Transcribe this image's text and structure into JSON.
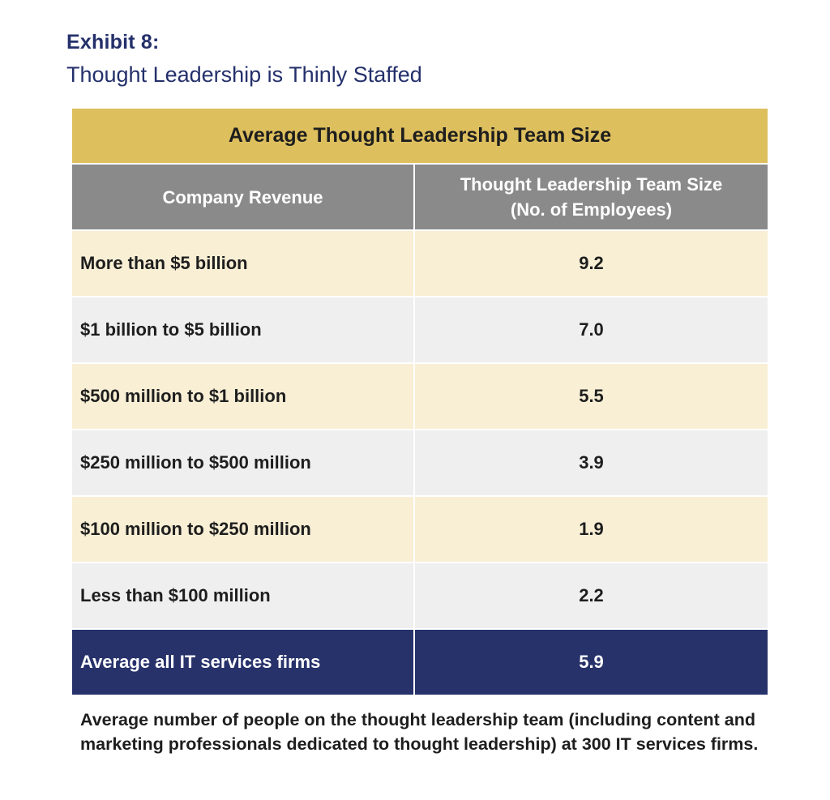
{
  "exhibit": {
    "label": "Exhibit 8:",
    "subtitle": "Thought Leadership is Thinly Staffed"
  },
  "table": {
    "title": "Average Thought Leadership Team Size",
    "headers": {
      "col1": "Company Revenue",
      "col2_line1": "Thought Leadership Team Size",
      "col2_line2": "(No. of Employees)"
    },
    "rows": [
      {
        "revenue": "More than $5 billion",
        "size": "9.2"
      },
      {
        "revenue": "$1 billion to $5 billion",
        "size": "7.0"
      },
      {
        "revenue": "$500 million to $1 billion",
        "size": "5.5"
      },
      {
        "revenue": "$250 million to $500 million",
        "size": "3.9"
      },
      {
        "revenue": "$100 million to $250 million",
        "size": "1.9"
      },
      {
        "revenue": "Less than $100 million",
        "size": "2.2"
      }
    ],
    "total": {
      "revenue": "Average all IT services firms",
      "size": "5.9"
    }
  },
  "footnote": "Average number of people on the thought leadership team (including content and marketing professionals dedicated to thought leadership) at 300 IT services firms.",
  "colors": {
    "title_bar": "#ddbf5e",
    "header": "#8a8a8a",
    "row_odd": "#f9efd5",
    "row_even": "#efefef",
    "total_row": "#27326b",
    "heading_text": "#24306b"
  }
}
